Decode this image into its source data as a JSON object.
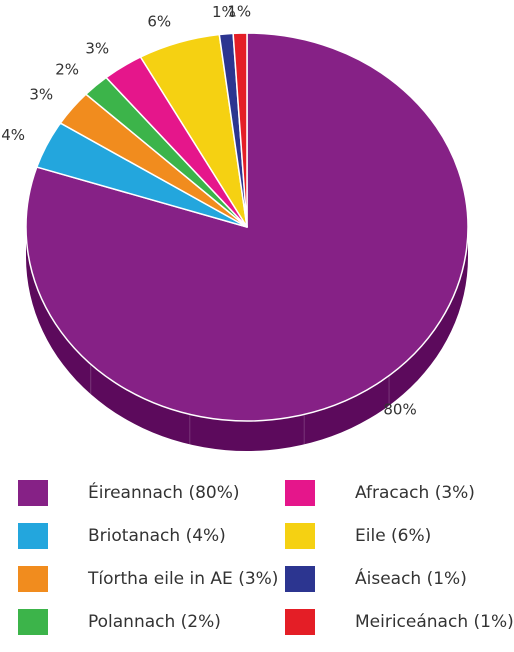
{
  "chart_data": {
    "type": "pie",
    "slices": [
      {
        "label": "Éireannach (80%)",
        "value": 80,
        "pct_label": "80%",
        "color": "#862186",
        "side_color": "#5c0a5c"
      },
      {
        "label": "Briotanach (4%)",
        "value": 4,
        "pct_label": "4%",
        "color": "#23a6dd",
        "side_color": "#1778a6"
      },
      {
        "label": "Tíortha eile in AE (3%)",
        "value": 3,
        "pct_label": "3%",
        "color": "#f18c1e",
        "side_color": "#b5650f"
      },
      {
        "label": "Polannach (2%)",
        "value": 2,
        "pct_label": "2%",
        "color": "#3cb44a",
        "side_color": "#2a8535"
      },
      {
        "label": "Afracach (3%)",
        "value": 3,
        "pct_label": "3%",
        "color": "#e5168b",
        "side_color": "#a80d64"
      },
      {
        "label": "Eile (6%)",
        "value": 6,
        "pct_label": "6%",
        "color": "#f5d112",
        "side_color": "#b89b08"
      },
      {
        "label": "Áiseach (1%)",
        "value": 1,
        "pct_label": "1%",
        "color": "#2c3590",
        "side_color": "#1c2368"
      },
      {
        "label": "Meiriceánach (1%)",
        "value": 1,
        "pct_label": "1%",
        "color": "#e41e26",
        "side_color": "#a8141a"
      }
    ],
    "legend_order": [
      0,
      4,
      1,
      5,
      2,
      6,
      3,
      7
    ],
    "legend_placement": "bottom"
  }
}
